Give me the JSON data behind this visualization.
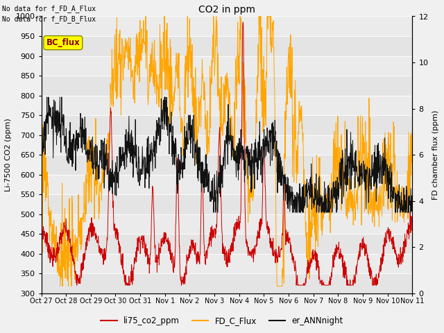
{
  "title": "CO2 in ppm",
  "ylabel_left": "Li-7500 CO2 (ppm)",
  "ylabel_right": "FD chamber flux (ppm)",
  "ylim_left": [
    300,
    1000
  ],
  "ylim_right": [
    0,
    12
  ],
  "text_no_data_1": "No data for f_FD_A_Flux",
  "text_no_data_2": "No data for f_FD_B_Flux",
  "bc_flux_label": "BC_flux",
  "legend_labels": [
    "li75_co2_ppm",
    "FD_C_Flux",
    "er_ANNnight"
  ],
  "legend_colors": [
    "#cc0000",
    "#FFA500",
    "#111111"
  ],
  "line_colors": {
    "red": "#cc0000",
    "orange": "#FFA500",
    "black": "#111111"
  },
  "xtick_labels": [
    "Oct 27",
    "Oct 28",
    "Oct 29",
    "Oct 30",
    "Oct 31",
    "Nov 1",
    "Nov 2",
    "Nov 3",
    "Nov 4",
    "Nov 5",
    "Nov 6",
    "Nov 7",
    "Nov 8",
    "Nov 9",
    "Nov 10",
    "Nov 11"
  ],
  "background_color": "#f0f0f0",
  "band_colors": [
    "#e8e8e8",
    "#ebebeb"
  ]
}
